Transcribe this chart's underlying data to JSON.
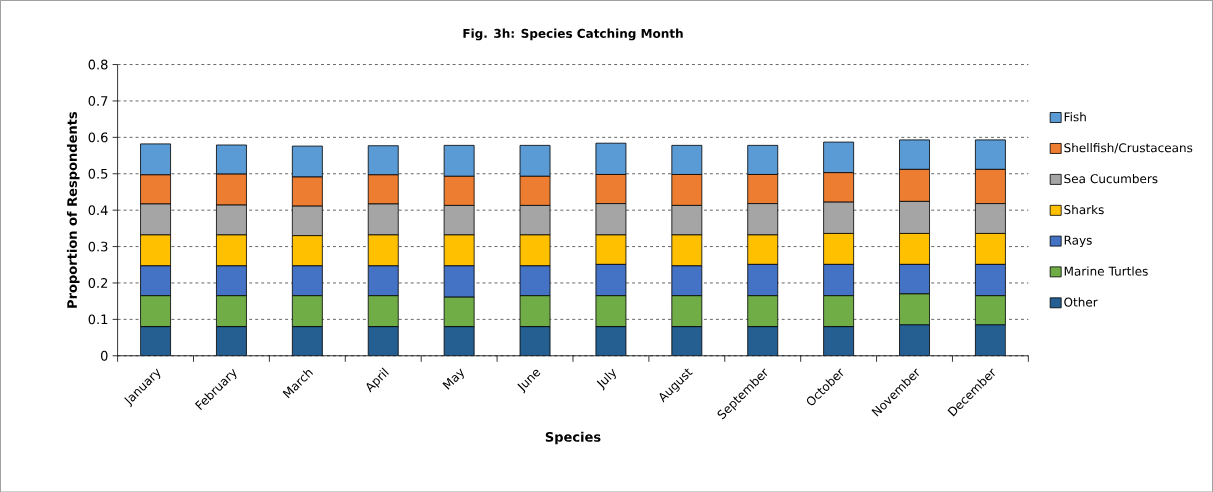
{
  "chart_data": {
    "type": "bar",
    "stacked": true,
    "title": "Fig. 3h: Species Catching Month",
    "xlabel": "Species",
    "ylabel": "Proportion of Respondents",
    "categories": [
      "January",
      "February",
      "March",
      "April",
      "May",
      "June",
      "July",
      "August",
      "September",
      "October",
      "November",
      "December"
    ],
    "series": [
      {
        "name": "Other",
        "color": "#255e91",
        "values": [
          0.08,
          0.08,
          0.08,
          0.08,
          0.08,
          0.08,
          0.08,
          0.08,
          0.08,
          0.08,
          0.085,
          0.085
        ]
      },
      {
        "name": "Marine Turtles",
        "color": "#70ad47",
        "values": [
          0.085,
          0.085,
          0.085,
          0.085,
          0.081,
          0.085,
          0.085,
          0.085,
          0.085,
          0.085,
          0.085,
          0.08
        ]
      },
      {
        "name": "Rays",
        "color": "#4472c4",
        "values": [
          0.082,
          0.082,
          0.082,
          0.082,
          0.086,
          0.082,
          0.086,
          0.082,
          0.086,
          0.086,
          0.081,
          0.086
        ]
      },
      {
        "name": "Sharks",
        "color": "#ffc000",
        "values": [
          0.085,
          0.085,
          0.083,
          0.085,
          0.085,
          0.085,
          0.081,
          0.085,
          0.081,
          0.085,
          0.085,
          0.085
        ]
      },
      {
        "name": "Sea Cucumbers",
        "color": "#a5a5a5",
        "values": [
          0.085,
          0.082,
          0.081,
          0.085,
          0.081,
          0.081,
          0.086,
          0.081,
          0.086,
          0.086,
          0.088,
          0.082
        ]
      },
      {
        "name": "Shellfish/Crustaceans",
        "color": "#ed7d31",
        "values": [
          0.08,
          0.085,
          0.08,
          0.08,
          0.08,
          0.08,
          0.08,
          0.085,
          0.08,
          0.081,
          0.088,
          0.094
        ]
      },
      {
        "name": "Fish",
        "color": "#5b9bd5",
        "values": [
          0.085,
          0.08,
          0.085,
          0.08,
          0.085,
          0.085,
          0.086,
          0.08,
          0.08,
          0.084,
          0.081,
          0.081
        ]
      }
    ],
    "ylim": [
      0,
      0.8
    ],
    "yticks": [
      0,
      0.1,
      0.2,
      0.3,
      0.4,
      0.5,
      0.6,
      0.7,
      0.8
    ],
    "grid": "y",
    "legend": "right"
  }
}
